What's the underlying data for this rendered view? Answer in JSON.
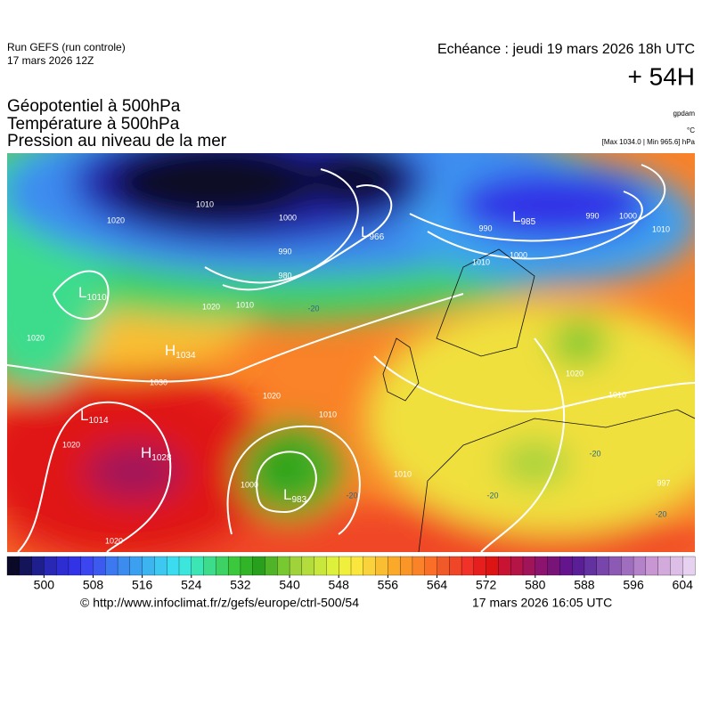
{
  "header": {
    "run": "Run GEFS (run controle)",
    "run_date": "17 mars 2026 12Z",
    "echeance": "Echéance : jeudi 19 mars 2026 18h UTC",
    "lead": "+ 54H"
  },
  "titles": [
    "Géopotentiel à 500hPa",
    "Température à 500hPa",
    "Pression au niveau de la mer"
  ],
  "units": [
    "gpdam",
    "°C",
    "[Max 1034.0 | Min 965.6] hPa"
  ],
  "pressure_centers": [
    {
      "letter": "L",
      "value": "1010"
    },
    {
      "letter": "H",
      "value": "1034"
    },
    {
      "letter": "L",
      "value": "1014"
    },
    {
      "letter": "H",
      "value": "1028"
    },
    {
      "letter": "L",
      "value": "983"
    },
    {
      "letter": "L",
      "value": "966"
    },
    {
      "letter": "L",
      "value": "985"
    }
  ],
  "isobar_labels": [
    "1020",
    "1010",
    "1000",
    "990",
    "980",
    "1010",
    "1020",
    "1020",
    "1030",
    "1020",
    "1020",
    "1020",
    "1010",
    "1010",
    "1000",
    "990",
    "1000",
    "1010",
    "990",
    "1000",
    "1010",
    "1020",
    "1010",
    "997"
  ],
  "temperature_labels": [
    "-20",
    "-20",
    "-20",
    "-20",
    "-20"
  ],
  "colorbar": {
    "lim": [
      494,
      606
    ],
    "ticks": [
      500,
      508,
      516,
      524,
      532,
      540,
      548,
      556,
      564,
      572,
      580,
      588,
      596,
      604
    ],
    "colors": [
      "#0a0a28",
      "#14145a",
      "#1e1e8c",
      "#2828b4",
      "#2d2dd2",
      "#3232e6",
      "#3c46f0",
      "#3c5af0",
      "#3c78f0",
      "#3c8cf0",
      "#3ca0f0",
      "#3cb4f0",
      "#3cc8f0",
      "#3cdcf0",
      "#3ce6dc",
      "#3ce6b4",
      "#3cdc8c",
      "#3cd264",
      "#3cc83c",
      "#32b428",
      "#28a01e",
      "#50b428",
      "#78c832",
      "#a0d23c",
      "#b4dc3c",
      "#c8e63c",
      "#dcf03c",
      "#f0f03c",
      "#fae63c",
      "#fad23c",
      "#fabe32",
      "#faaa28",
      "#fa9628",
      "#fa8228",
      "#fa6e28",
      "#f05a28",
      "#f04628",
      "#f03228",
      "#e61e1e",
      "#dc1414",
      "#c81432",
      "#b41446",
      "#a0145a",
      "#8c146e",
      "#781478",
      "#64148c",
      "#5a1e96",
      "#6432a0",
      "#7846aa",
      "#8c5ab4",
      "#a06ebe",
      "#b482c8",
      "#c896d2",
      "#d2aadc",
      "#dcbee6",
      "#e6d2f0"
    ]
  },
  "footer": {
    "url": "© http://www.infoclimat.fr/z/gefs/europe/ctrl-500/54",
    "timestamp": "17 mars 2026 16:05 UTC"
  }
}
